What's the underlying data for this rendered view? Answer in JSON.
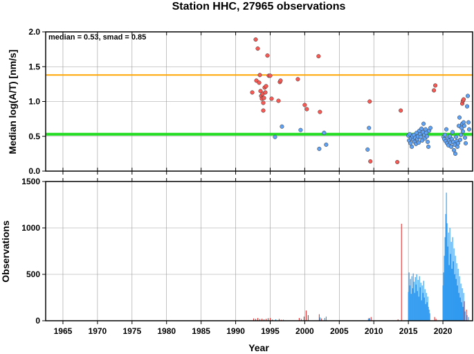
{
  "chart_data": [
    {
      "type": "scatter",
      "title": "Station HHC, 27965 observations",
      "ylabel": "Median log(A/T) [nm/s]",
      "annotation": "median = 0.53, smad = 0.85",
      "xlim": [
        1962.5,
        2024.3
      ],
      "ylim": [
        0,
        2.0
      ],
      "y_ticks": [
        "0.0",
        "0.5",
        "1.0",
        "1.5",
        "2.0"
      ],
      "x_ticks": [
        1965,
        1970,
        1975,
        1980,
        1985,
        1990,
        1995,
        2000,
        2005,
        2010,
        2015,
        2020
      ],
      "grid": true,
      "reference_lines": [
        {
          "y": 1.38,
          "color": "#ffa500"
        },
        {
          "y": 0.53,
          "color": "#22dd22"
        }
      ],
      "series": [
        {
          "color": "#f55a55",
          "points": [
            [
              1992.4,
              1.13
            ],
            [
              1992.9,
              1.89
            ],
            [
              1993.0,
              1.3
            ],
            [
              1993.2,
              1.76
            ],
            [
              1993.4,
              1.27
            ],
            [
              1993.5,
              1.38
            ],
            [
              1993.6,
              1.15
            ],
            [
              1993.7,
              1.08
            ],
            [
              1993.8,
              1.04
            ],
            [
              1993.9,
              1.11
            ],
            [
              1994.0,
              0.98
            ],
            [
              1994.0,
              0.87
            ],
            [
              1994.1,
              1.05
            ],
            [
              1994.2,
              1.2
            ],
            [
              1994.3,
              1.13
            ],
            [
              1994.4,
              1.22
            ],
            [
              1994.6,
              1.66
            ],
            [
              1994.8,
              1.37
            ],
            [
              1995.0,
              1.37
            ],
            [
              1995.2,
              1.04
            ],
            [
              1996.2,
              1.01
            ],
            [
              1996.4,
              1.28
            ],
            [
              1996.5,
              1.3
            ],
            [
              1999.0,
              1.32
            ],
            [
              2000.0,
              0.95
            ],
            [
              2000.3,
              0.89
            ],
            [
              2002.0,
              1.65
            ],
            [
              2002.2,
              0.85
            ],
            [
              2009.4,
              1.0
            ],
            [
              2009.5,
              0.14
            ],
            [
              2013.4,
              0.13
            ],
            [
              2013.9,
              0.87
            ],
            [
              2018.7,
              1.16
            ],
            [
              2018.9,
              1.23
            ],
            [
              2022.8,
              0.97
            ],
            [
              2022.9,
              1.01
            ],
            [
              2023.0,
              1.03
            ]
          ]
        },
        {
          "color": "#5fa2f4",
          "points": [
            [
              1995.7,
              0.49
            ],
            [
              1996.7,
              0.64
            ],
            [
              1999.4,
              0.59
            ],
            [
              2002.1,
              0.32
            ],
            [
              2002.8,
              0.55
            ],
            [
              2003.1,
              0.38
            ],
            [
              2009.1,
              0.31
            ],
            [
              2009.3,
              0.62
            ],
            [
              2015.0,
              0.51
            ],
            [
              2015.1,
              0.44
            ],
            [
              2015.2,
              0.53
            ],
            [
              2015.3,
              0.4
            ],
            [
              2015.4,
              0.47
            ],
            [
              2015.5,
              0.35
            ],
            [
              2015.6,
              0.5
            ],
            [
              2015.7,
              0.45
            ],
            [
              2015.8,
              0.52
            ],
            [
              2015.9,
              0.42
            ],
            [
              2016.0,
              0.48
            ],
            [
              2016.1,
              0.39
            ],
            [
              2016.2,
              0.55
            ],
            [
              2016.3,
              0.46
            ],
            [
              2016.4,
              0.5
            ],
            [
              2016.5,
              0.41
            ],
            [
              2016.6,
              0.58
            ],
            [
              2016.7,
              0.53
            ],
            [
              2016.8,
              0.49
            ],
            [
              2016.9,
              0.61
            ],
            [
              2017.0,
              0.44
            ],
            [
              2017.1,
              0.56
            ],
            [
              2017.2,
              0.68
            ],
            [
              2017.3,
              0.52
            ],
            [
              2017.4,
              0.47
            ],
            [
              2017.5,
              0.6
            ],
            [
              2017.6,
              0.55
            ],
            [
              2017.7,
              0.5
            ],
            [
              2017.8,
              0.42
            ],
            [
              2017.9,
              0.35
            ],
            [
              2018.0,
              0.58
            ],
            [
              2018.2,
              0.62
            ],
            [
              2020.1,
              0.49
            ],
            [
              2020.2,
              0.46
            ],
            [
              2020.3,
              0.52
            ],
            [
              2020.4,
              0.43
            ],
            [
              2020.5,
              0.6
            ],
            [
              2020.6,
              0.4
            ],
            [
              2020.7,
              0.47
            ],
            [
              2020.8,
              0.37
            ],
            [
              2020.9,
              0.44
            ],
            [
              2021.0,
              0.5
            ],
            [
              2021.1,
              0.41
            ],
            [
              2021.2,
              0.35
            ],
            [
              2021.3,
              0.46
            ],
            [
              2021.4,
              0.56
            ],
            [
              2021.5,
              0.42
            ],
            [
              2021.6,
              0.3
            ],
            [
              2021.7,
              0.38
            ],
            [
              2021.8,
              0.25
            ],
            [
              2021.9,
              0.49
            ],
            [
              2022.0,
              0.43
            ],
            [
              2022.1,
              0.35
            ],
            [
              2022.2,
              0.4
            ],
            [
              2022.3,
              0.65
            ],
            [
              2022.4,
              0.77
            ],
            [
              2022.5,
              0.45
            ],
            [
              2022.6,
              0.52
            ],
            [
              2022.7,
              0.62
            ],
            [
              2022.8,
              0.68
            ],
            [
              2022.9,
              0.57
            ],
            [
              2023.0,
              0.7
            ],
            [
              2023.1,
              0.65
            ],
            [
              2023.2,
              0.48
            ],
            [
              2023.3,
              0.4
            ],
            [
              2023.5,
              0.93
            ],
            [
              2023.6,
              1.08
            ],
            [
              2023.7,
              0.7
            ],
            [
              2023.8,
              0.6
            ]
          ]
        }
      ]
    },
    {
      "type": "bar",
      "xlabel": "Year",
      "ylabel": "Observations",
      "xlim": [
        1962.5,
        2024.3
      ],
      "ylim": [
        0,
        1500
      ],
      "y_ticks": [
        "0",
        "500",
        "1000",
        "1500"
      ],
      "x_ticks": [
        1965,
        1970,
        1975,
        1980,
        1985,
        1990,
        1995,
        2000,
        2005,
        2010,
        2015,
        2020
      ],
      "x_tick_labels": [
        "1965",
        "1970",
        "1975",
        "1980",
        "1985",
        "1990",
        "1995",
        "2000",
        "2005",
        "2010",
        "2015",
        "2020"
      ],
      "grid": true,
      "series": [
        {
          "color": "#e83030",
          "bars": [
            [
              1992.6,
              25
            ],
            [
              1992.9,
              20
            ],
            [
              1993.2,
              30
            ],
            [
              1993.5,
              18
            ],
            [
              1993.8,
              22
            ],
            [
              1994.1,
              15
            ],
            [
              1994.4,
              20
            ],
            [
              1994.7,
              28
            ],
            [
              1995.0,
              30
            ],
            [
              1995.3,
              12
            ],
            [
              1996.3,
              20
            ],
            [
              1996.6,
              10
            ],
            [
              1999.2,
              30
            ],
            [
              1999.9,
              45
            ],
            [
              2000.2,
              110
            ],
            [
              2000.5,
              60
            ],
            [
              2002.1,
              70
            ],
            [
              2002.4,
              25
            ],
            [
              2009.3,
              30
            ],
            [
              2009.6,
              40
            ],
            [
              2013.5,
              15
            ],
            [
              2014.0,
              1045
            ],
            [
              2018.8,
              40
            ],
            [
              2019.0,
              20
            ],
            [
              2023.1,
              210
            ],
            [
              2023.4,
              120
            ]
          ]
        },
        {
          "color": "#2b98f0",
          "bars": [
            [
              1995.8,
              15
            ],
            [
              1996.9,
              12
            ],
            [
              1999.5,
              20
            ],
            [
              2002.2,
              35
            ],
            [
              2002.9,
              30
            ],
            [
              2003.1,
              45
            ],
            [
              2009.2,
              20
            ],
            [
              2009.4,
              25
            ],
            [
              2015.0,
              310
            ],
            [
              2015.1,
              520
            ],
            [
              2015.2,
              380
            ],
            [
              2015.3,
              450
            ],
            [
              2015.4,
              290
            ],
            [
              2015.5,
              480
            ],
            [
              2015.6,
              350
            ],
            [
              2015.7,
              510
            ],
            [
              2015.8,
              420
            ],
            [
              2015.9,
              300
            ],
            [
              2016.0,
              470
            ],
            [
              2016.1,
              390
            ],
            [
              2016.2,
              500
            ],
            [
              2016.3,
              320
            ],
            [
              2016.4,
              440
            ],
            [
              2016.5,
              260
            ],
            [
              2016.6,
              480
            ],
            [
              2016.7,
              360
            ],
            [
              2016.8,
              410
            ],
            [
              2016.9,
              220
            ],
            [
              2017.0,
              380
            ],
            [
              2017.1,
              300
            ],
            [
              2017.2,
              430
            ],
            [
              2017.3,
              250
            ],
            [
              2017.4,
              340
            ],
            [
              2017.5,
              180
            ],
            [
              2017.6,
              300
            ],
            [
              2017.7,
              200
            ],
            [
              2017.8,
              260
            ],
            [
              2017.9,
              150
            ],
            [
              2018.0,
              120
            ],
            [
              2018.1,
              80
            ],
            [
              2020.0,
              380
            ],
            [
              2020.1,
              520
            ],
            [
              2020.2,
              700
            ],
            [
              2020.3,
              900
            ],
            [
              2020.4,
              1150
            ],
            [
              2020.5,
              1380
            ],
            [
              2020.6,
              1050
            ],
            [
              2020.7,
              800
            ],
            [
              2020.8,
              950
            ],
            [
              2020.9,
              600
            ],
            [
              2021.0,
              1000
            ],
            [
              2021.1,
              720
            ],
            [
              2021.2,
              850
            ],
            [
              2021.3,
              560
            ],
            [
              2021.4,
              900
            ],
            [
              2021.5,
              640
            ],
            [
              2021.6,
              780
            ],
            [
              2021.7,
              500
            ],
            [
              2021.8,
              700
            ],
            [
              2021.9,
              450
            ],
            [
              2022.0,
              620
            ],
            [
              2022.1,
              380
            ],
            [
              2022.2,
              560
            ],
            [
              2022.3,
              300
            ],
            [
              2022.4,
              480
            ],
            [
              2022.5,
              250
            ],
            [
              2022.6,
              400
            ],
            [
              2022.7,
              200
            ],
            [
              2022.8,
              350
            ],
            [
              2022.9,
              150
            ],
            [
              2023.0,
              300
            ],
            [
              2023.2,
              100
            ],
            [
              2023.5,
              60
            ],
            [
              2023.7,
              40
            ]
          ]
        }
      ]
    }
  ]
}
